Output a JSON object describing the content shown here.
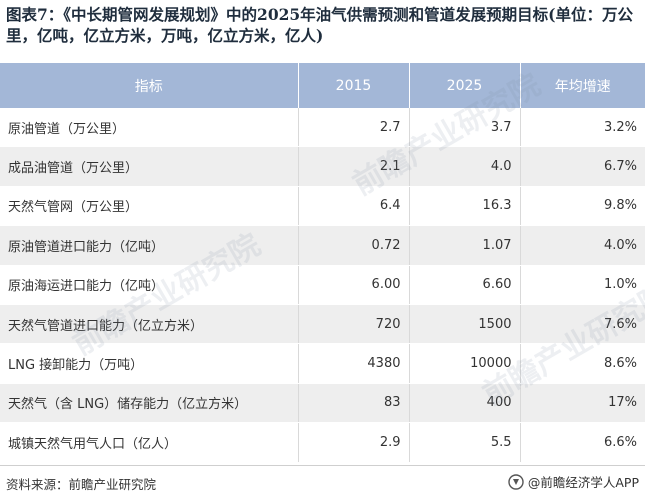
{
  "title": "图表7：《中长期管网发展规划》中的2025年油气供需预测和管道发展预期目标(单位：万公里，亿吨，亿立方米，万吨，亿立方米，亿人)",
  "table": {
    "headers": [
      "指标",
      "2015",
      "2025",
      "年均增速"
    ],
    "rows": [
      {
        "name": "原油管道（万公里）",
        "v2015": "2.7",
        "v2025": "3.7",
        "growth": "3.2%"
      },
      {
        "name": "成品油管道（万公里）",
        "v2015": "2.1",
        "v2025": "4.0",
        "growth": "6.7%"
      },
      {
        "name": "天然气管网（万公里）",
        "v2015": "6.4",
        "v2025": "16.3",
        "growth": "9.8%"
      },
      {
        "name": "原油管道进口能力（亿吨）",
        "v2015": "0.72",
        "v2025": "1.07",
        "growth": "4.0%"
      },
      {
        "name": "原油海运进口能力（亿吨）",
        "v2015": "6.00",
        "v2025": "6.60",
        "growth": "1.0%"
      },
      {
        "name": "天然气管道进口能力（亿立方米）",
        "v2015": "720",
        "v2025": "1500",
        "growth": "7.6%"
      },
      {
        "name": "LNG 接卸能力（万吨）",
        "v2015": "4380",
        "v2025": "10000",
        "growth": "8.6%"
      },
      {
        "name": "天然气（含 LNG）储存能力（亿立方米）",
        "v2015": "83",
        "v2025": "400",
        "growth": "17%"
      },
      {
        "name": "城镇天然气用气人口（亿人）",
        "v2015": "2.9",
        "v2025": "5.5",
        "growth": "6.6%"
      }
    ]
  },
  "footer": {
    "source": "资料来源：前瞻产业研究院",
    "brand": "@前瞻经济学人APP"
  },
  "watermark": "前瞻产业研究院",
  "colors": {
    "header_bg": "#a3b7d7",
    "row_alt": "#eeeeee"
  }
}
